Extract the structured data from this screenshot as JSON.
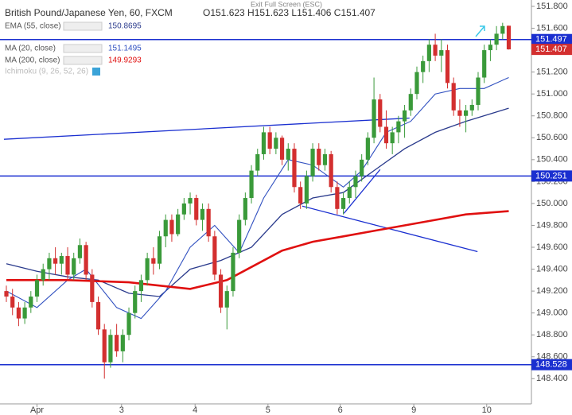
{
  "chart_data": {
    "type": "candlestick",
    "title": "British Pound/Japanese Yen, 60, FXCM",
    "ohlc_text": "O151.623 H151.623 L151.406 C151.407",
    "exit_text": "Exit Full Screen (ESC)",
    "up_color": "#3a9a3a",
    "down_color": "#d32f2f",
    "candles": [
      [
        149.2,
        149.25,
        149.1,
        149.15
      ],
      [
        149.15,
        149.22,
        148.98,
        149.05
      ],
      [
        149.05,
        149.1,
        148.88,
        148.95
      ],
      [
        148.95,
        149.1,
        148.9,
        149.05
      ],
      [
        149.05,
        149.2,
        149.0,
        149.15
      ],
      [
        149.15,
        149.35,
        149.1,
        149.3
      ],
      [
        149.3,
        149.45,
        149.25,
        149.4
      ],
      [
        149.4,
        149.55,
        149.3,
        149.5
      ],
      [
        149.5,
        149.6,
        149.35,
        149.45
      ],
      [
        149.45,
        149.55,
        149.35,
        149.52
      ],
      [
        149.52,
        149.6,
        149.3,
        149.35
      ],
      [
        149.35,
        149.55,
        149.3,
        149.5
      ],
      [
        149.5,
        149.68,
        149.45,
        149.62
      ],
      [
        149.62,
        149.65,
        149.3,
        149.35
      ],
      [
        149.35,
        149.4,
        149.05,
        149.1
      ],
      [
        149.1,
        149.15,
        148.8,
        148.85
      ],
      [
        148.85,
        148.9,
        148.4,
        148.55
      ],
      [
        148.55,
        148.85,
        148.5,
        148.8
      ],
      [
        148.8,
        148.9,
        148.6,
        148.65
      ],
      [
        148.65,
        148.85,
        148.55,
        148.8
      ],
      [
        148.8,
        149.05,
        148.75,
        149.0
      ],
      [
        149.0,
        149.25,
        148.95,
        149.2
      ],
      [
        149.2,
        149.35,
        149.1,
        149.3
      ],
      [
        149.3,
        149.55,
        149.25,
        149.5
      ],
      [
        149.5,
        149.6,
        149.35,
        149.45
      ],
      [
        149.45,
        149.75,
        149.4,
        149.7
      ],
      [
        149.7,
        149.9,
        149.6,
        149.85
      ],
      [
        149.85,
        149.9,
        149.65,
        149.72
      ],
      [
        149.72,
        149.95,
        149.7,
        149.9
      ],
      [
        149.9,
        150.05,
        149.85,
        150.0
      ],
      [
        150.0,
        150.1,
        149.9,
        150.05
      ],
      [
        150.05,
        150.08,
        149.8,
        149.85
      ],
      [
        149.85,
        150.0,
        149.75,
        149.95
      ],
      [
        149.95,
        150.0,
        149.65,
        149.7
      ],
      [
        149.7,
        149.75,
        149.3,
        149.35
      ],
      [
        149.35,
        149.4,
        149.0,
        149.05
      ],
      [
        149.05,
        149.25,
        148.85,
        149.2
      ],
      [
        149.2,
        149.6,
        149.15,
        149.55
      ],
      [
        149.55,
        149.9,
        149.5,
        149.85
      ],
      [
        149.85,
        150.1,
        149.8,
        150.05
      ],
      [
        150.05,
        150.35,
        150.0,
        150.3
      ],
      [
        150.3,
        150.5,
        150.25,
        150.45
      ],
      [
        150.45,
        150.7,
        150.4,
        150.65
      ],
      [
        150.65,
        150.7,
        150.45,
        150.5
      ],
      [
        150.5,
        150.65,
        150.45,
        150.6
      ],
      [
        150.6,
        150.62,
        150.35,
        150.4
      ],
      [
        150.4,
        150.55,
        150.3,
        150.5
      ],
      [
        150.5,
        150.55,
        150.1,
        150.15
      ],
      [
        150.15,
        150.2,
        149.95,
        150.0
      ],
      [
        150.0,
        150.3,
        149.95,
        150.25
      ],
      [
        150.25,
        150.55,
        150.2,
        150.5
      ],
      [
        150.5,
        150.55,
        150.3,
        150.35
      ],
      [
        150.35,
        150.5,
        150.3,
        150.45
      ],
      [
        150.45,
        150.48,
        150.1,
        150.15
      ],
      [
        150.15,
        150.2,
        149.9,
        149.95
      ],
      [
        149.95,
        150.1,
        149.9,
        150.05
      ],
      [
        150.05,
        150.2,
        150.0,
        150.15
      ],
      [
        150.15,
        150.3,
        150.05,
        150.25
      ],
      [
        150.25,
        150.45,
        150.2,
        150.4
      ],
      [
        150.4,
        150.65,
        150.35,
        150.6
      ],
      [
        150.6,
        151.15,
        150.55,
        150.95
      ],
      [
        150.95,
        151.0,
        150.65,
        150.7
      ],
      [
        150.7,
        150.85,
        150.5,
        150.55
      ],
      [
        150.55,
        150.7,
        150.45,
        150.65
      ],
      [
        150.65,
        150.8,
        150.55,
        150.75
      ],
      [
        150.75,
        150.9,
        150.6,
        150.85
      ],
      [
        150.85,
        151.05,
        150.8,
        151.0
      ],
      [
        151.0,
        151.25,
        150.95,
        151.2
      ],
      [
        151.2,
        151.35,
        151.1,
        151.3
      ],
      [
        151.3,
        151.5,
        151.2,
        151.45
      ],
      [
        151.45,
        151.55,
        151.3,
        151.35
      ],
      [
        151.35,
        151.5,
        151.2,
        151.4
      ],
      [
        151.4,
        151.45,
        151.05,
        151.1
      ],
      [
        151.1,
        151.15,
        150.8,
        150.85
      ],
      [
        150.85,
        150.95,
        150.7,
        150.8
      ],
      [
        150.8,
        150.9,
        150.65,
        150.85
      ],
      [
        150.85,
        150.95,
        150.8,
        150.9
      ],
      [
        150.9,
        151.2,
        150.85,
        151.15
      ],
      [
        151.15,
        151.45,
        151.1,
        151.4
      ],
      [
        151.4,
        151.5,
        151.3,
        151.45
      ],
      [
        151.45,
        151.62,
        151.4,
        151.55
      ],
      [
        151.55,
        151.65,
        151.5,
        151.62
      ],
      [
        151.623,
        151.623,
        151.406,
        151.407
      ]
    ],
    "indicators": [
      {
        "name": "EMA (55, close)",
        "value_text": "150.8695",
        "color": "#2a3a8c",
        "width": 1.3,
        "x": [
          0,
          5,
          10,
          15,
          20,
          25,
          30,
          35,
          40,
          45,
          50,
          55,
          60,
          65,
          70,
          75,
          82
        ],
        "values": [
          149.45,
          149.38,
          149.33,
          149.3,
          149.18,
          149.15,
          149.4,
          149.48,
          149.6,
          149.9,
          150.05,
          150.1,
          150.3,
          150.5,
          150.65,
          150.75,
          150.87
        ]
      },
      {
        "name": "MA (20, close)",
        "value_text": "151.1495",
        "color": "#3050c0",
        "width": 1.1,
        "x": [
          0,
          5,
          10,
          13,
          18,
          22,
          26,
          30,
          34,
          38,
          42,
          46,
          50,
          55,
          58,
          62,
          66,
          70,
          74,
          78,
          82
        ],
        "values": [
          149.2,
          149.05,
          149.3,
          149.4,
          149.05,
          148.95,
          149.2,
          149.6,
          149.8,
          149.55,
          150.05,
          150.4,
          150.35,
          150.15,
          150.3,
          150.65,
          150.75,
          151.0,
          151.05,
          151.05,
          151.15
        ]
      },
      {
        "name": "MA (200, close)",
        "value_text": "149.9293",
        "color": "#e01010",
        "width": 2.6,
        "x": [
          0,
          10,
          20,
          30,
          36,
          40,
          45,
          50,
          55,
          60,
          65,
          70,
          75,
          82
        ],
        "values": [
          149.3,
          149.3,
          149.28,
          149.22,
          149.3,
          149.42,
          149.57,
          149.65,
          149.7,
          149.75,
          149.8,
          149.85,
          149.9,
          149.93
        ]
      }
    ],
    "ichimoku": "Ichimoku (9, 26, 52, 26)",
    "hlines": [
      {
        "value": 151.497,
        "label": "151.497"
      },
      {
        "value": 150.251,
        "label": "150.251"
      },
      {
        "value": 148.528,
        "label": "148.528"
      }
    ],
    "hline_color": "#1a2fd0",
    "last_price": {
      "value": 151.407,
      "label": "151.407"
    },
    "trendlines": [
      {
        "x": [
          -0.4,
          65.8
        ],
        "y": [
          150.586,
          150.78
        ]
      },
      {
        "x": [
          48.3,
          76.9
        ],
        "y": [
          149.976,
          149.56
        ]
      },
      {
        "x": [
          55.1,
          61
        ],
        "y": [
          149.91,
          150.31
        ]
      }
    ],
    "xlim": [
      -1.04,
      85.7
    ],
    "xticks": [
      {
        "value": 5,
        "label": "Apr"
      },
      {
        "value": 18.8,
        "label": "3"
      },
      {
        "value": 30.8,
        "label": "4"
      },
      {
        "value": 42.7,
        "label": "5"
      },
      {
        "value": 54.5,
        "label": "6"
      },
      {
        "value": 66.5,
        "label": "9"
      },
      {
        "value": 78.4,
        "label": "10"
      }
    ],
    "ylim": [
      148.17,
      151.858
    ],
    "yticks": [
      {
        "value": 148.4,
        "label": "148.400"
      },
      {
        "value": 148.6,
        "label": "148.600"
      },
      {
        "value": 148.8,
        "label": "148.800"
      },
      {
        "value": 149.0,
        "label": "149.000"
      },
      {
        "value": 149.2,
        "label": "149.200"
      },
      {
        "value": 149.4,
        "label": "149.400"
      },
      {
        "value": 149.6,
        "label": "149.600"
      },
      {
        "value": 149.8,
        "label": "149.800"
      },
      {
        "value": 150.0,
        "label": "150.000"
      },
      {
        "value": 150.2,
        "label": "150.200"
      },
      {
        "value": 150.4,
        "label": "150.400"
      },
      {
        "value": 150.6,
        "label": "150.600"
      },
      {
        "value": 150.8,
        "label": "150.800"
      },
      {
        "value": 151.0,
        "label": "151.000"
      },
      {
        "value": 151.2,
        "label": "151.200"
      },
      {
        "value": 151.4,
        "label": "151.400"
      },
      {
        "value": 151.6,
        "label": "151.600"
      },
      {
        "value": 151.8,
        "label": "151.800"
      }
    ]
  }
}
